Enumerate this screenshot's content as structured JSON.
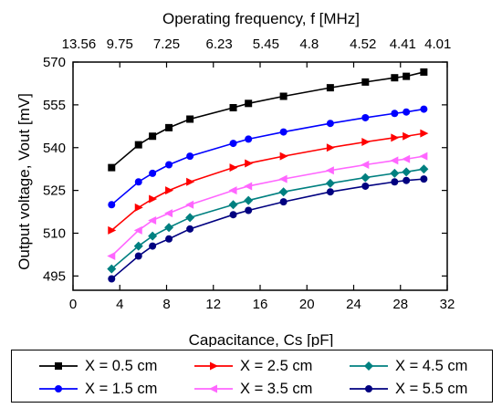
{
  "chart_data": {
    "type": "line",
    "xlabel": "Capacitance, Cs [pF]",
    "ylabel": "Output voltage, Vout [mV]",
    "top_axis_label": "Operating frequency, f [MHz]",
    "xlim": [
      0,
      32
    ],
    "ylim": [
      490,
      570
    ],
    "xticks": [
      0,
      4,
      8,
      12,
      16,
      20,
      24,
      28,
      32
    ],
    "yticks": [
      495,
      510,
      525,
      540,
      555,
      570
    ],
    "top_ticks": [
      {
        "x": 0.5,
        "label": "13.56"
      },
      {
        "x": 4,
        "label": "9.75"
      },
      {
        "x": 8,
        "label": "7.25"
      },
      {
        "x": 12.5,
        "label": "6.23"
      },
      {
        "x": 16.5,
        "label": "5.45"
      },
      {
        "x": 20.2,
        "label": "4.8"
      },
      {
        "x": 24.8,
        "label": "4.52"
      },
      {
        "x": 28.2,
        "label": "4.41"
      },
      {
        "x": 31.2,
        "label": "4.01"
      }
    ],
    "grid": false,
    "legend_position": "bottom",
    "x": [
      3.3,
      5.6,
      6.8,
      8.2,
      10,
      13.7,
      15,
      18,
      22,
      25,
      27.5,
      28.5,
      30
    ],
    "series": [
      {
        "name": "X = 0.5 cm",
        "color": "#000000",
        "marker": "square",
        "values": [
          533,
          541,
          544,
          547,
          550,
          554,
          555.5,
          558,
          561,
          563,
          564.5,
          565,
          566.5
        ]
      },
      {
        "name": "X = 1.5 cm",
        "color": "#0000ff",
        "marker": "circle",
        "values": [
          520,
          528,
          531,
          534,
          537,
          541.5,
          543,
          545.5,
          548.5,
          550.5,
          552,
          552.5,
          553.5
        ]
      },
      {
        "name": "X = 2.5 cm",
        "color": "#ff0000",
        "marker": "triangle-right",
        "values": [
          511,
          519,
          522,
          525,
          528,
          533,
          534.5,
          537,
          540,
          542,
          543.5,
          544,
          545
        ]
      },
      {
        "name": "X = 3.5 cm",
        "color": "#ff66ff",
        "marker": "triangle-left",
        "values": [
          502,
          511,
          514.5,
          517,
          520,
          525,
          526.5,
          529,
          532,
          534,
          535.5,
          536,
          537
        ]
      },
      {
        "name": "X = 4.5 cm",
        "color": "#008080",
        "marker": "diamond",
        "values": [
          497.5,
          505.5,
          509,
          512,
          515.5,
          520,
          521.5,
          524.5,
          527.5,
          529.5,
          531,
          531.5,
          532.5
        ]
      },
      {
        "name": "X = 5.5 cm",
        "color": "#000080",
        "marker": "circle",
        "values": [
          494,
          502,
          505.5,
          508,
          511.5,
          516.5,
          518,
          521,
          524.5,
          526.5,
          528,
          528.5,
          529
        ]
      }
    ]
  }
}
